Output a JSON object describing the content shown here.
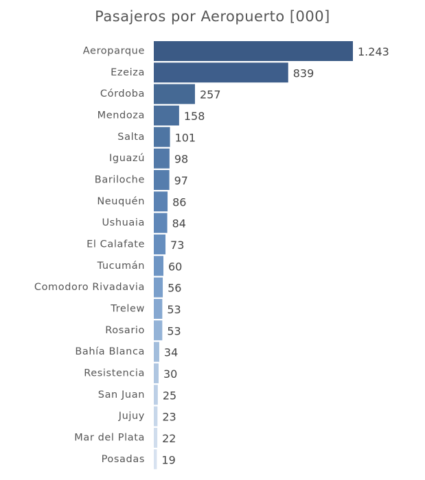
{
  "chart_data": {
    "type": "bar",
    "orientation": "horizontal",
    "title": "Pasajeros por Aeropuerto [000]",
    "categories": [
      "Aeroparque",
      "Ezeiza",
      "Córdoba",
      "Mendoza",
      "Salta",
      "Iguazú",
      "Bariloche",
      "Neuquén",
      "Ushuaia",
      "El Calafate",
      "Tucumán",
      "Comodoro Rivadavia",
      "Trelew",
      "Rosario",
      "Bahía Blanca",
      "Resistencia",
      "San Juan",
      "Jujuy",
      "Mar del Plata",
      "Posadas"
    ],
    "values": [
      1243,
      839,
      257,
      158,
      101,
      98,
      97,
      86,
      84,
      73,
      60,
      56,
      53,
      53,
      34,
      30,
      25,
      23,
      22,
      19
    ],
    "value_labels": [
      "1.243",
      "839",
      "257",
      "158",
      "101",
      "98",
      "97",
      "86",
      "84",
      "73",
      "60",
      "56",
      "53",
      "53",
      "34",
      "30",
      "25",
      "23",
      "22",
      "19"
    ],
    "colors": [
      "#3b5a85",
      "#3e5e8b",
      "#456994",
      "#4a6f9c",
      "#4e75a3",
      "#5279a8",
      "#557dad",
      "#5a82b3",
      "#5f87b8",
      "#668ebe",
      "#6e95c4",
      "#7a9fcb",
      "#86a8d1",
      "#94b3d7",
      "#a2bddc",
      "#afc6e1",
      "#bccfe6",
      "#c7d7ea",
      "#d0dded",
      "#d7e2f0"
    ],
    "xlim": [
      0,
      1243
    ],
    "grid": false,
    "legend": "none"
  }
}
